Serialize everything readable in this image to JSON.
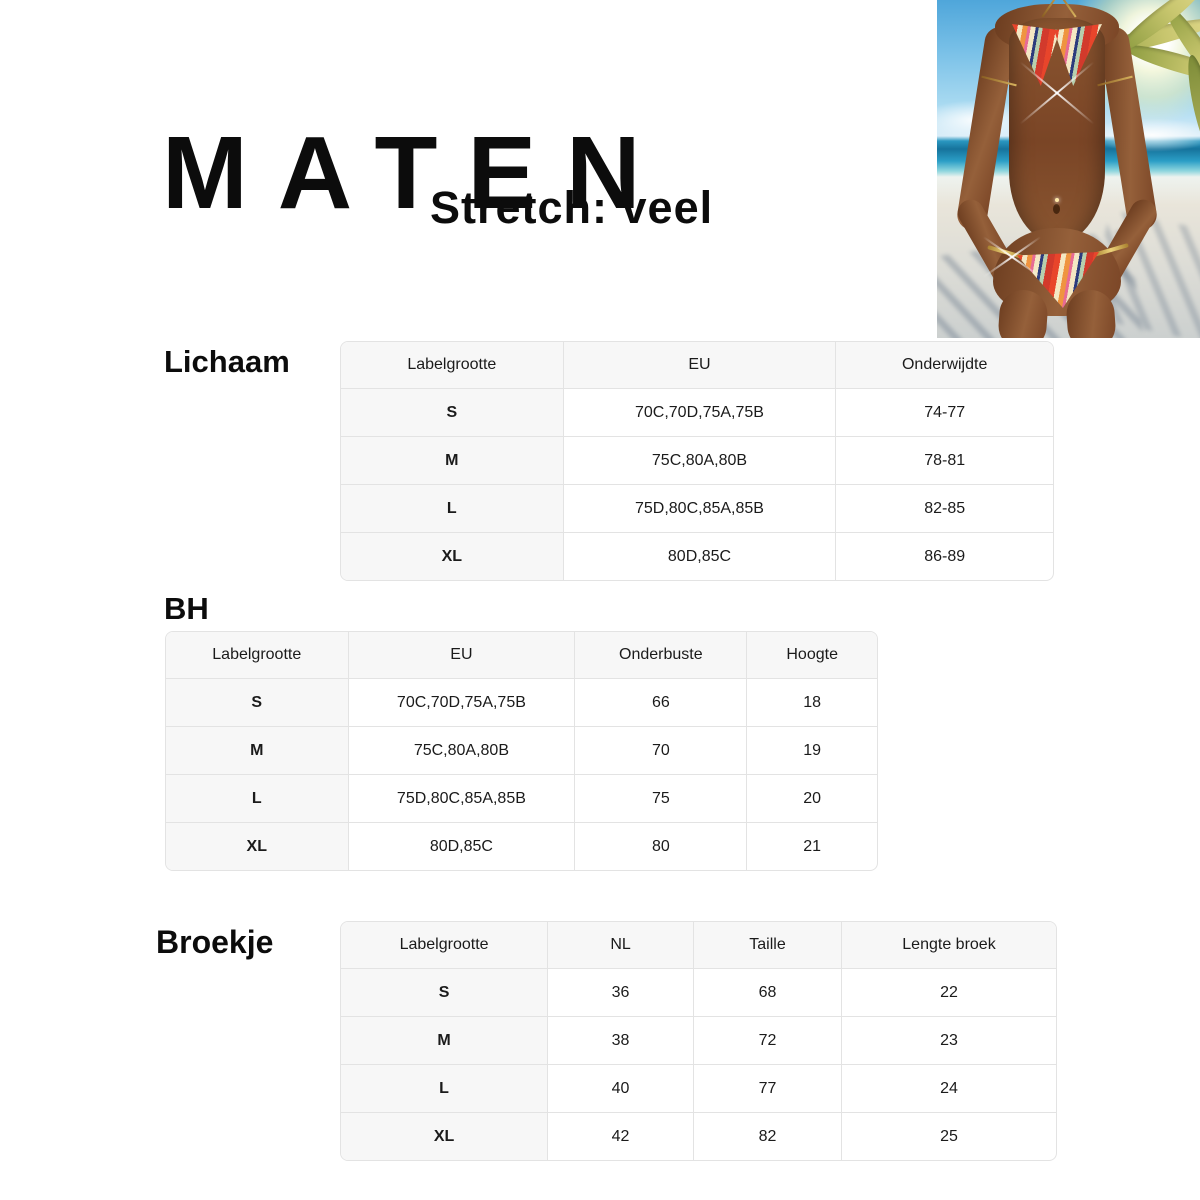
{
  "header": {
    "title": "MATEN",
    "stretch_note": "Stretch: veel"
  },
  "photo": {
    "alt": "Model in multicolor striped triangle bikini standing on a tropical beach with palm tree, sun and ocean"
  },
  "sections": [
    {
      "id": "lichaam",
      "label": "Lichaam",
      "columns": [
        "Labelgrootte",
        "EU",
        "Onderwijdte"
      ],
      "rows": [
        [
          "S",
          "70C,70D,75A,75B",
          "74-77"
        ],
        [
          "M",
          "75C,80A,80B",
          "78-81"
        ],
        [
          "L",
          "75D,80C,85A,85B",
          "82-85"
        ],
        [
          "XL",
          "80D,85C",
          "86-89"
        ]
      ]
    },
    {
      "id": "bh",
      "label": "BH",
      "columns": [
        "Labelgrootte",
        "EU",
        "Onderbuste",
        "Hoogte"
      ],
      "rows": [
        [
          "S",
          "70C,70D,75A,75B",
          "66",
          "18"
        ],
        [
          "M",
          "75C,80A,80B",
          "70",
          "19"
        ],
        [
          "L",
          "75D,80C,85A,85B",
          "75",
          "20"
        ],
        [
          "XL",
          "80D,85C",
          "80",
          "21"
        ]
      ]
    },
    {
      "id": "broekje",
      "label": "Broekje",
      "columns": [
        "Labelgrootte",
        "NL",
        "Taille",
        "Lengte broek"
      ],
      "rows": [
        [
          "S",
          "36",
          "68",
          "22"
        ],
        [
          "M",
          "38",
          "72",
          "23"
        ],
        [
          "L",
          "40",
          "77",
          "24"
        ],
        [
          "XL",
          "42",
          "82",
          "25"
        ]
      ]
    }
  ],
  "colors": {
    "text": "#1b1b1b",
    "table_border": "#e3e3e3",
    "table_header_bg": "#f7f7f7",
    "photo_sand": "#e9e5da",
    "bikini_red": "#e8452b",
    "bikini_orange": "#ef9440",
    "bikini_navy": "#2c3b7d"
  }
}
